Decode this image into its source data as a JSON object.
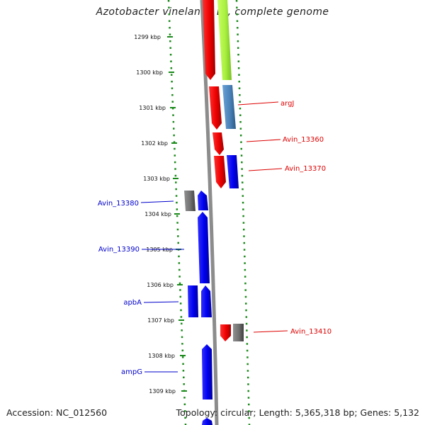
{
  "title": "Azotobacter vinelandii DJ, complete genome",
  "footer": {
    "accession": "Accession: NC_012560",
    "summary": "Topology: circular; Length: 5,365,318 bp; Genes: 5,132"
  },
  "ticks": [
    "1299 kbp",
    "1300 kbp",
    "1301 kbp",
    "1302 kbp",
    "1303 kbp",
    "1304 kbp",
    "1305 kbp",
    "1306 kbp",
    "1307 kbp",
    "1308 kbp",
    "1309 kbp"
  ],
  "colors": {
    "forward": "#0000ee",
    "reverse": "#ee0000",
    "grey": "#707070",
    "lime": "#a8f040",
    "steelblue": "#4a82b8",
    "ring": "#1a8a1a",
    "axis": "#8c8c8c",
    "label_right": "#dd0000",
    "label_left": "#0000cc"
  },
  "labels": {
    "right": [
      "argJ",
      "Avin_13360",
      "Avin_13370",
      "Avin_13410"
    ],
    "left": [
      "Avin_13380",
      "Avin_13390",
      "apbA",
      "ampG"
    ]
  }
}
